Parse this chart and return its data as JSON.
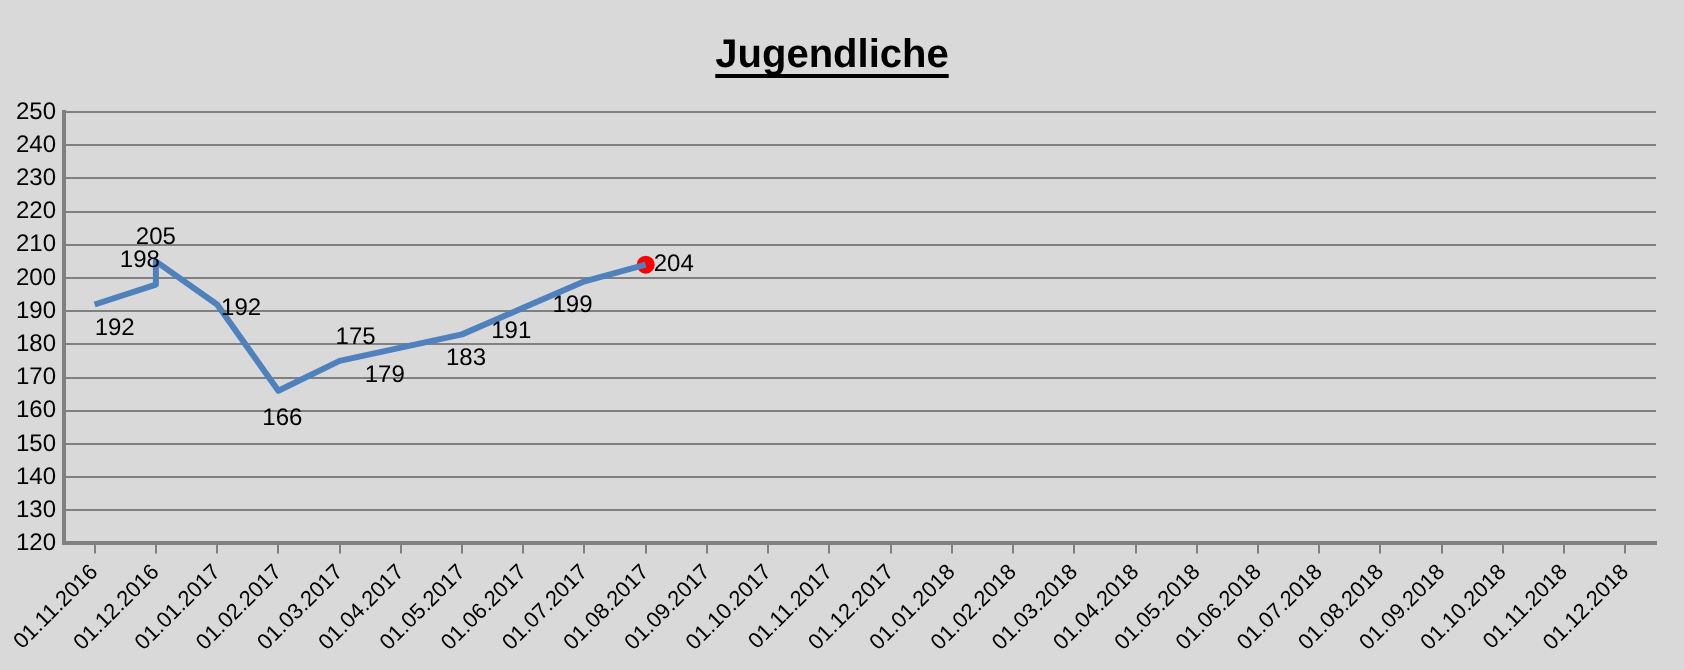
{
  "chart_data": {
    "type": "line",
    "title": "Jugendliche",
    "categories": [
      "01.11.2016",
      "01.12.2016",
      "01.01.2017",
      "01.02.2017",
      "01.03.2017",
      "01.04.2017",
      "01.05.2017",
      "01.06.2017",
      "01.07.2017",
      "01.08.2017",
      "01.09.2017",
      "01.10.2017",
      "01.11.2017",
      "01.12.2017",
      "01.01.2018",
      "01.02.2018",
      "01.03.2018",
      "01.04.2018",
      "01.05.2018",
      "01.06.2018",
      "01.07.2018",
      "01.08.2018",
      "01.09.2018",
      "01.10.2018",
      "01.11.2018",
      "01.12.2018"
    ],
    "series": [
      {
        "type": "line",
        "color": "#4f81bd",
        "x": [
          "01.11.2016",
          "01.12.2016",
          "01.12.2016",
          "01.01.2017",
          "01.02.2017",
          "01.03.2017",
          "01.04.2017",
          "01.05.2017",
          "01.06.2017",
          "01.07.2017",
          "01.08.2017"
        ],
        "values": [
          192,
          198,
          205,
          192,
          166,
          175,
          179,
          183,
          191,
          199,
          204
        ],
        "value_labels": [
          "192",
          "198",
          "205",
          "192",
          "166",
          "175",
          "179",
          "183",
          "191",
          "199",
          null
        ],
        "marker": "none"
      },
      {
        "type": "scatter",
        "color": "#ff0000",
        "x": [
          "01.08.2017"
        ],
        "values": [
          204
        ],
        "value_labels": [
          "204"
        ],
        "marker": "circle"
      }
    ],
    "ylim": [
      120,
      250
    ],
    "yticks": [
      120,
      130,
      140,
      150,
      160,
      170,
      180,
      190,
      200,
      210,
      220,
      230,
      240,
      250
    ],
    "grid": "y",
    "legend": false
  }
}
